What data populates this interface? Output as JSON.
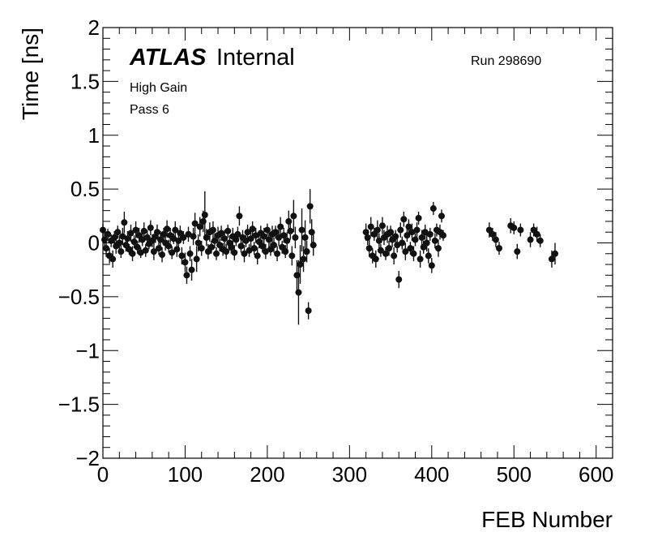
{
  "chart_data": {
    "type": "scatter",
    "title": "",
    "xlabel": "FEB Number",
    "ylabel": "Time [ns]",
    "xlim": [
      0,
      620
    ],
    "ylim": [
      -2,
      2
    ],
    "x_ticks": [
      0,
      100,
      200,
      300,
      400,
      500,
      600
    ],
    "y_ticks": [
      -2,
      -1.5,
      -1,
      -0.5,
      0,
      0.5,
      1,
      1.5,
      2
    ],
    "x_tick_labels": [
      "0",
      "100",
      "200",
      "300",
      "400",
      "500",
      "600"
    ],
    "y_tick_labels": [
      "−2",
      "−1.5",
      "−1",
      "−0.5",
      "0",
      "0.5",
      "1",
      "1.5",
      "2"
    ],
    "grid": false,
    "error_bars": true,
    "marker_color": "#111111",
    "annotations": {
      "atlas_bold": "ATLAS",
      "atlas_rest": "Internal",
      "gain": "High Gain",
      "pass": "Pass 6",
      "run": "Run 298690"
    },
    "series": [
      {
        "points": [
          [
            0,
            0.12,
            0.06
          ],
          [
            2,
            0.03,
            0.07
          ],
          [
            4,
            -0.05,
            0.08
          ],
          [
            6,
            0.08,
            0.05
          ],
          [
            8,
            -0.12,
            0.07
          ],
          [
            10,
            0.02,
            0.06
          ],
          [
            12,
            -0.15,
            0.08
          ],
          [
            14,
            0.05,
            0.06
          ],
          [
            16,
            -0.03,
            0.07
          ],
          [
            18,
            0.1,
            0.06
          ],
          [
            20,
            0.0,
            0.07
          ],
          [
            22,
            -0.08,
            0.06
          ],
          [
            24,
            0.06,
            0.08
          ],
          [
            26,
            0.19,
            0.1
          ],
          [
            28,
            -0.02,
            0.06
          ],
          [
            30,
            0.04,
            0.07
          ],
          [
            32,
            -0.06,
            0.05
          ],
          [
            34,
            0.09,
            0.08
          ],
          [
            36,
            -0.1,
            0.07
          ],
          [
            38,
            0.01,
            0.06
          ],
          [
            40,
            0.12,
            0.08
          ],
          [
            42,
            -0.04,
            0.06
          ],
          [
            44,
            0.07,
            0.07
          ],
          [
            46,
            -0.09,
            0.05
          ],
          [
            48,
            0.03,
            0.06
          ],
          [
            50,
            0.11,
            0.08
          ],
          [
            52,
            -0.07,
            0.06
          ],
          [
            54,
            0.05,
            0.07
          ],
          [
            56,
            -0.01,
            0.05
          ],
          [
            58,
            0.14,
            0.07
          ],
          [
            60,
            0.02,
            0.06
          ],
          [
            62,
            -0.08,
            0.08
          ],
          [
            64,
            0.06,
            0.06
          ],
          [
            66,
            0.1,
            0.07
          ],
          [
            68,
            -0.05,
            0.06
          ],
          [
            70,
            0.03,
            0.08
          ],
          [
            72,
            -0.11,
            0.07
          ],
          [
            74,
            0.08,
            0.06
          ],
          [
            76,
            0.0,
            0.07
          ],
          [
            78,
            0.13,
            0.08
          ],
          [
            80,
            -0.03,
            0.06
          ],
          [
            82,
            0.07,
            0.07
          ],
          [
            84,
            -0.09,
            0.06
          ],
          [
            86,
            0.04,
            0.05
          ],
          [
            88,
            0.12,
            0.08
          ],
          [
            90,
            -0.06,
            0.07
          ],
          [
            92,
            0.02,
            0.06
          ],
          [
            94,
            0.09,
            0.07
          ],
          [
            96,
            -0.12,
            0.08
          ],
          [
            98,
            0.05,
            0.06
          ],
          [
            100,
            -0.18,
            0.09
          ],
          [
            102,
            -0.3,
            0.08
          ],
          [
            104,
            0.08,
            0.07
          ],
          [
            106,
            -0.1,
            0.07
          ],
          [
            108,
            -0.25,
            0.1
          ],
          [
            110,
            0.06,
            0.08
          ],
          [
            112,
            0.18,
            0.1
          ],
          [
            114,
            -0.15,
            0.12
          ],
          [
            116,
            0.0,
            0.08
          ],
          [
            118,
            0.15,
            0.09
          ],
          [
            120,
            -0.05,
            0.07
          ],
          [
            122,
            0.2,
            0.1
          ],
          [
            124,
            0.26,
            0.22
          ],
          [
            126,
            0.05,
            0.08
          ],
          [
            128,
            -0.08,
            0.07
          ],
          [
            130,
            0.1,
            0.09
          ],
          [
            132,
            -0.04,
            0.06
          ],
          [
            134,
            0.12,
            0.08
          ],
          [
            136,
            0.02,
            0.07
          ],
          [
            138,
            -0.1,
            0.06
          ],
          [
            140,
            0.07,
            0.08
          ],
          [
            142,
            -0.02,
            0.06
          ],
          [
            144,
            0.09,
            0.07
          ],
          [
            146,
            -0.06,
            0.06
          ],
          [
            148,
            0.04,
            0.08
          ],
          [
            150,
            -0.08,
            0.07
          ],
          [
            152,
            0.11,
            0.06
          ],
          [
            154,
            0.0,
            0.07
          ],
          [
            156,
            -0.04,
            0.06
          ],
          [
            158,
            0.06,
            0.08
          ],
          [
            160,
            -0.09,
            0.07
          ],
          [
            162,
            0.03,
            0.06
          ],
          [
            164,
            0.08,
            0.07
          ],
          [
            166,
            0.25,
            0.09
          ],
          [
            168,
            -0.03,
            0.06
          ],
          [
            170,
            0.05,
            0.07
          ],
          [
            172,
            -0.1,
            0.08
          ],
          [
            174,
            0.02,
            0.06
          ],
          [
            176,
            0.1,
            0.07
          ],
          [
            178,
            -0.07,
            0.06
          ],
          [
            180,
            0.04,
            0.08
          ],
          [
            182,
            0.13,
            0.07
          ],
          [
            184,
            -0.05,
            0.06
          ],
          [
            186,
            0.07,
            0.07
          ],
          [
            188,
            -0.12,
            0.08
          ],
          [
            190,
            0.01,
            0.06
          ],
          [
            192,
            0.09,
            0.07
          ],
          [
            194,
            -0.03,
            0.06
          ],
          [
            196,
            0.06,
            0.08
          ],
          [
            198,
            -0.08,
            0.07
          ],
          [
            200,
            0.12,
            0.06
          ],
          [
            202,
            0.03,
            0.07
          ],
          [
            204,
            -0.06,
            0.06
          ],
          [
            206,
            0.08,
            0.08
          ],
          [
            208,
            -0.02,
            0.07
          ],
          [
            210,
            0.1,
            0.06
          ],
          [
            212,
            -0.1,
            0.07
          ],
          [
            214,
            0.05,
            0.08
          ],
          [
            216,
            0.15,
            0.09
          ],
          [
            218,
            -0.04,
            0.06
          ],
          [
            220,
            0.07,
            0.07
          ],
          [
            222,
            -0.08,
            0.06
          ],
          [
            224,
            0.02,
            0.08
          ],
          [
            226,
            0.2,
            0.1
          ],
          [
            228,
            0.11,
            0.08
          ],
          [
            230,
            -0.12,
            0.09
          ],
          [
            232,
            0.25,
            0.15
          ],
          [
            234,
            0.05,
            0.1
          ],
          [
            236,
            -0.3,
            0.14
          ],
          [
            238,
            -0.46,
            0.3
          ],
          [
            240,
            -0.2,
            0.18
          ],
          [
            242,
            0.12,
            0.2
          ],
          [
            244,
            -0.15,
            0.12
          ],
          [
            246,
            0.05,
            0.16
          ],
          [
            248,
            -0.08,
            0.1
          ],
          [
            250,
            -0.63,
            0.08
          ],
          [
            252,
            0.34,
            0.16
          ],
          [
            254,
            0.1,
            0.12
          ],
          [
            256,
            -0.02,
            0.1
          ],
          [
            320,
            0.1,
            0.08
          ],
          [
            322,
            0.05,
            0.07
          ],
          [
            324,
            -0.05,
            0.08
          ],
          [
            326,
            0.15,
            0.09
          ],
          [
            328,
            -0.12,
            0.07
          ],
          [
            330,
            0.08,
            0.06
          ],
          [
            332,
            -0.15,
            0.08
          ],
          [
            334,
            0.12,
            0.09
          ],
          [
            336,
            0.02,
            0.07
          ],
          [
            338,
            -0.07,
            0.06
          ],
          [
            340,
            0.16,
            0.08
          ],
          [
            342,
            0.05,
            0.07
          ],
          [
            344,
            -0.1,
            0.06
          ],
          [
            346,
            0.08,
            0.08
          ],
          [
            348,
            -0.05,
            0.07
          ],
          [
            350,
            0.1,
            0.06
          ],
          [
            352,
            0.03,
            0.07
          ],
          [
            354,
            -0.12,
            0.08
          ],
          [
            356,
            0.06,
            0.06
          ],
          [
            358,
            -0.02,
            0.07
          ],
          [
            360,
            -0.34,
            0.08
          ],
          [
            362,
            0.12,
            0.07
          ],
          [
            364,
            0.0,
            0.06
          ],
          [
            366,
            0.22,
            0.07
          ],
          [
            368,
            -0.08,
            0.08
          ],
          [
            370,
            0.07,
            0.06
          ],
          [
            372,
            0.15,
            0.07
          ],
          [
            374,
            -0.05,
            0.06
          ],
          [
            376,
            0.1,
            0.08
          ],
          [
            378,
            -0.1,
            0.07
          ],
          [
            380,
            0.03,
            0.06
          ],
          [
            382,
            0.12,
            0.07
          ],
          [
            384,
            0.23,
            0.06
          ],
          [
            386,
            -0.15,
            0.08
          ],
          [
            388,
            0.05,
            0.07
          ],
          [
            390,
            -0.04,
            0.06
          ],
          [
            392,
            0.1,
            0.07
          ],
          [
            394,
            0.0,
            0.08
          ],
          [
            396,
            -0.12,
            0.07
          ],
          [
            398,
            0.08,
            0.06
          ],
          [
            400,
            -0.21,
            0.07
          ],
          [
            402,
            0.32,
            0.06
          ],
          [
            404,
            0.02,
            0.07
          ],
          [
            406,
            0.12,
            0.06
          ],
          [
            408,
            -0.05,
            0.08
          ],
          [
            410,
            0.1,
            0.07
          ],
          [
            412,
            0.25,
            0.06
          ],
          [
            414,
            0.07,
            0.05
          ],
          [
            470,
            0.12,
            0.07
          ],
          [
            474,
            0.08,
            0.06
          ],
          [
            478,
            0.03,
            0.07
          ],
          [
            482,
            -0.05,
            0.06
          ],
          [
            496,
            0.16,
            0.07
          ],
          [
            500,
            0.14,
            0.06
          ],
          [
            504,
            -0.08,
            0.07
          ],
          [
            508,
            0.12,
            0.06
          ],
          [
            520,
            0.03,
            0.07
          ],
          [
            524,
            0.12,
            0.06
          ],
          [
            528,
            0.08,
            0.07
          ],
          [
            532,
            0.02,
            0.06
          ],
          [
            546,
            -0.15,
            0.08
          ],
          [
            550,
            -0.1,
            0.1
          ]
        ]
      }
    ]
  }
}
